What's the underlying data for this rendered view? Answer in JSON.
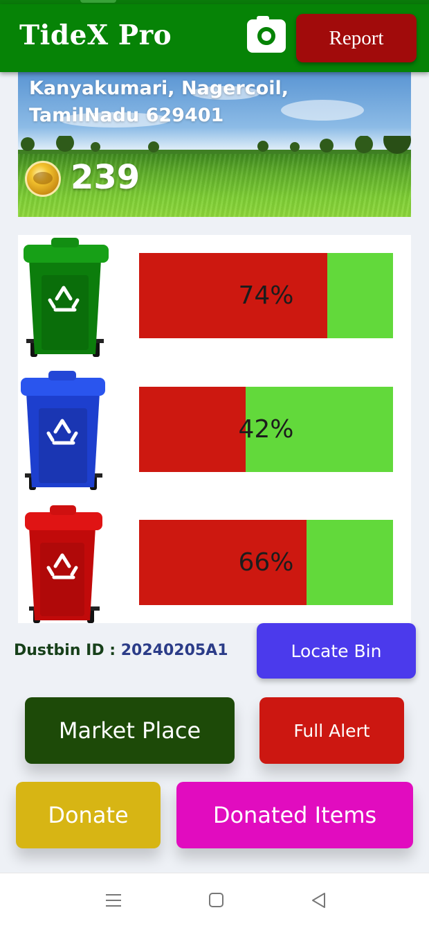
{
  "header": {
    "title": "TideX Pro",
    "camera_icon": "camera-icon",
    "report_label": "Report",
    "bar_color": "#068306"
  },
  "banner": {
    "address": "Kanyakumari, Nagercoil, TamilNadu 629401",
    "coin_icon": "coin-icon",
    "coins": "239"
  },
  "bins": [
    {
      "color": "green",
      "icon": "green-dustbin-icon",
      "fill_percent": 74,
      "label": "74%"
    },
    {
      "color": "blue",
      "icon": "blue-dustbin-icon",
      "fill_percent": 42,
      "label": "42%"
    },
    {
      "color": "red",
      "icon": "red-dustbin-icon",
      "fill_percent": 66,
      "label": "66%"
    }
  ],
  "dustbin": {
    "id_label": "Dustbin ID : ",
    "id_value": "20240205A1"
  },
  "actions": {
    "locate_bin": "Locate Bin",
    "market_place": "Market Place",
    "full_alert": "Full Alert",
    "donate": "Donate",
    "donated_items": "Donated Items"
  },
  "colors": {
    "filled": "#cd1810",
    "empty": "#62d93b",
    "locate": "#4b3aec",
    "market": "#1d4a08",
    "alert": "#cc1711",
    "donate": "#d7b514",
    "donated": "#e10cbf"
  },
  "navbar": {
    "menu_icon": "menu-icon",
    "home_icon": "home-icon",
    "back_icon": "back-icon"
  }
}
